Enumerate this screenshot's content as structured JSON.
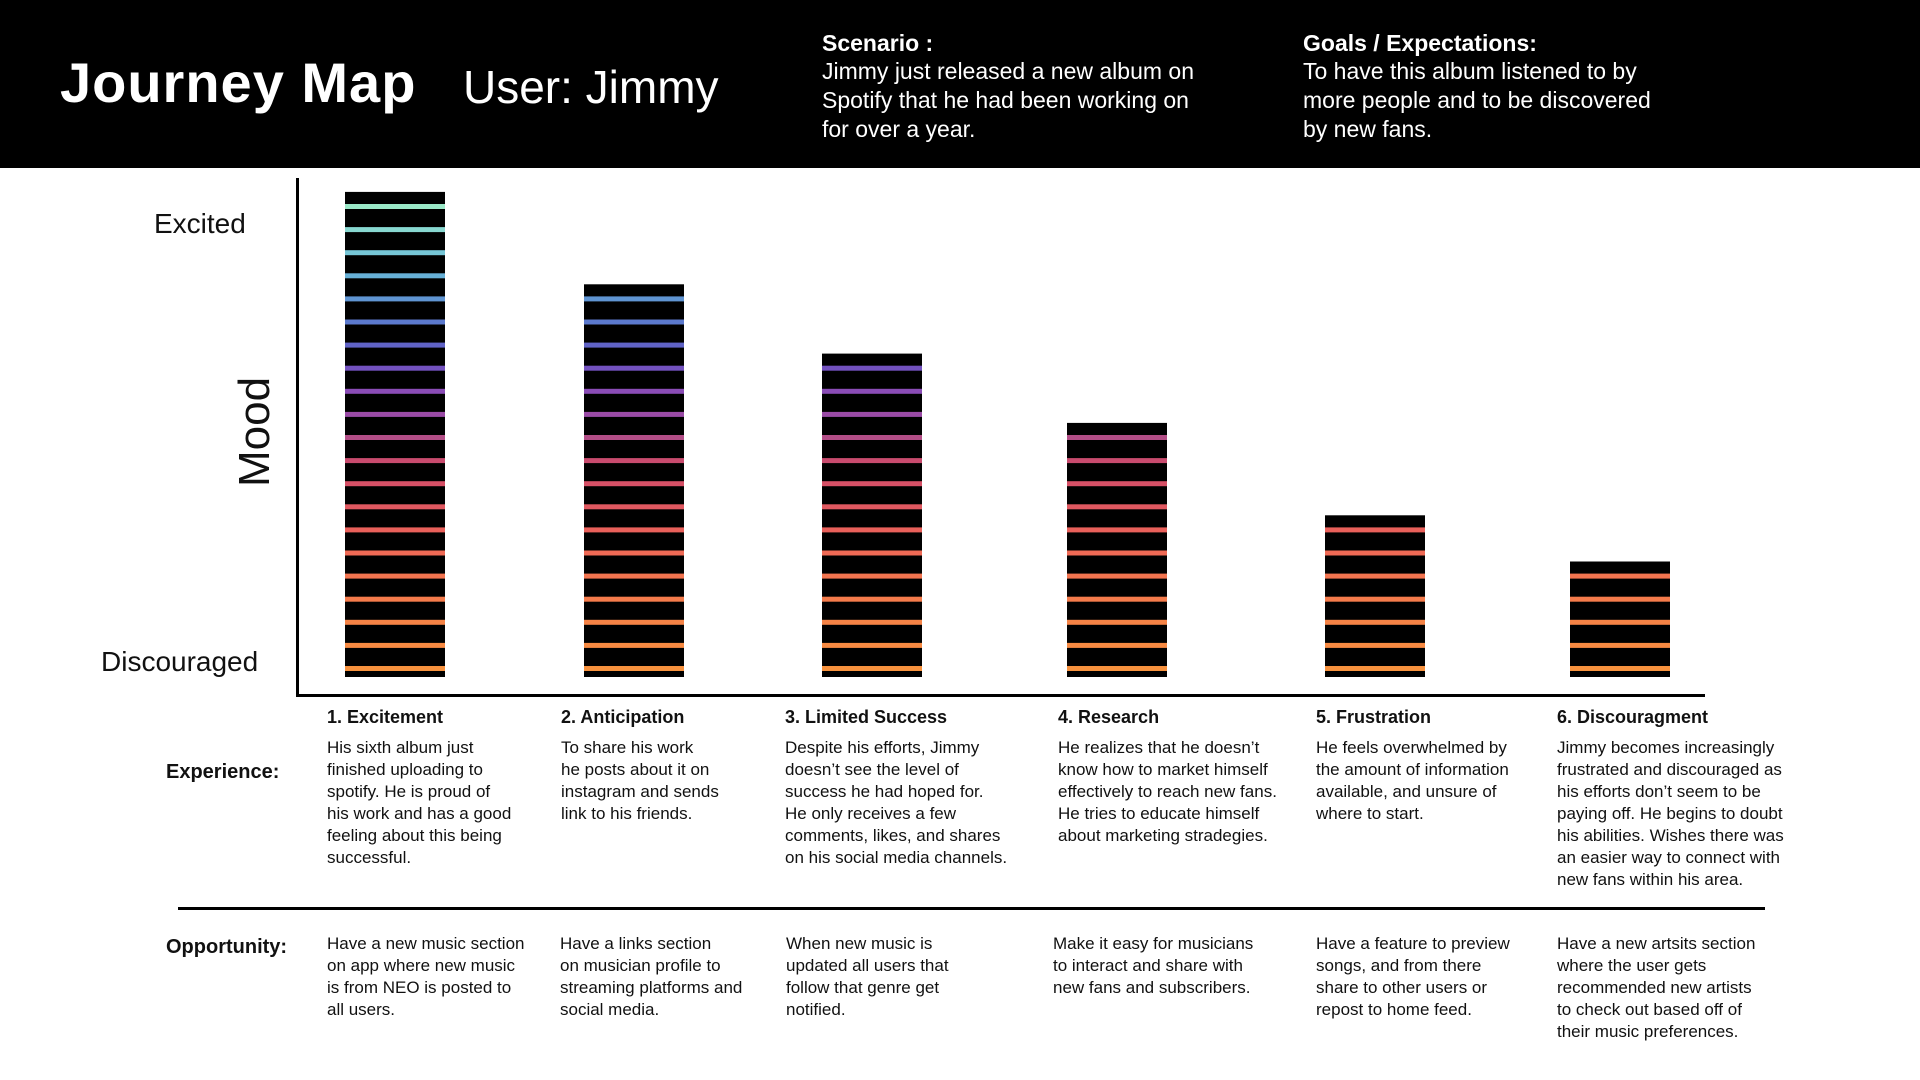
{
  "header": {
    "title": "Journey Map",
    "user": "User: Jimmy",
    "scenario_label": "Scenario :",
    "scenario_text": "Jimmy just released a new album on\nSpotify that he had been working on\nfor over a year.",
    "goals_label": "Goals / Expectations:",
    "goals_text": "To have this album listened to by\nmore people and to be discovered\nby new fans."
  },
  "axis": {
    "y_label": "Mood",
    "top_label": "Excited",
    "bottom_label": "Discouraged"
  },
  "rows": {
    "experience_label": "Experience:",
    "opportunity_label": "Opportunity:"
  },
  "stages": [
    {
      "title": "1. Excitement",
      "experience": "His sixth album just\nfinished uploading to\nspotify. He is proud of\nhis work and has a good\nfeeling about this being\nsuccessful.",
      "opportunity": "Have a new music section\non app where new music\nis from NEO is posted to\nall users."
    },
    {
      "title": "2. Anticipation",
      "experience": "To share his work\nhe posts about it on\ninstagram and sends\nlink to his friends.",
      "opportunity": "Have a links section\non musician profile to\nstreaming platforms and\nsocial media."
    },
    {
      "title": "3. Limited Success",
      "experience": "Despite his efforts, Jimmy\ndoesn’t see the level of\nsuccess he had hoped for.\nHe only receives a few\ncomments, likes, and shares\non his social media channels.",
      "opportunity": "When new music is\nupdated all users that\nfollow that genre get\nnotified."
    },
    {
      "title": "4. Research",
      "experience": "He realizes that he doesn’t\nknow how to market himself\neffectively to reach new fans.\nHe tries to educate himself\nabout marketing stradegies.",
      "opportunity": "Make it easy for musicians\nto interact and share with\nnew fans and subscribers."
    },
    {
      "title": "5. Frustration",
      "experience": "He feels overwhelmed by\nthe amount of information\navailable, and unsure of\nwhere to start.",
      "opportunity": "Have a feature to preview\nsongs, and from there\nshare to other users or\nrepost to home feed."
    },
    {
      "title": "6. Discouragment",
      "experience": "Jimmy becomes increasingly\nfrustrated and discouraged as\nhis efforts don’t seem to be\npaying off. He begins to doubt\nhis abilities. Wishes there was\nan easier way to connect with\nnew fans within his area.",
      "opportunity": "Have a new artsits section\nwhere the user gets\nrecommended new artists\nto check out based off of\ntheir music preferences."
    }
  ],
  "chart_data": {
    "type": "bar",
    "categories": [
      "1. Excitement",
      "2. Anticipation",
      "3. Limited Success",
      "4. Research",
      "5. Frustration",
      "6. Discouragment"
    ],
    "values": [
      21,
      17,
      14,
      11,
      7,
      5
    ],
    "ylabel": "Mood",
    "ylim": [
      0,
      21
    ],
    "stripe_colors_bottom_to_top": [
      "#f7913d",
      "#f78a42",
      "#f58346",
      "#f47b4b",
      "#f2744f",
      "#ef6a55",
      "#e9605a",
      "#e05860",
      "#d65066",
      "#c94b6e",
      "#b24d86",
      "#9a4ba6",
      "#8a4cb6",
      "#7352bf",
      "#6063c6",
      "#5b79cd",
      "#5f94d2",
      "#67b0d6",
      "#76c6d6",
      "#88d7d0",
      "#9ae8c7"
    ]
  }
}
